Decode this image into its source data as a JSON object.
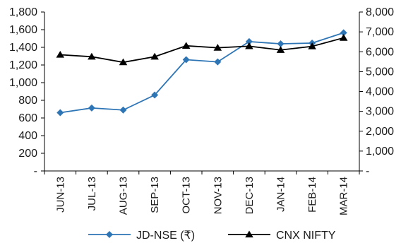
{
  "chart_data": {
    "type": "line",
    "categories": [
      "JUN-13",
      "JUL-13",
      "AUG-13",
      "SEP-13",
      "OCT-13",
      "NOV-13",
      "DEC-13",
      "JAN-14",
      "FEB-14",
      "MAR-14"
    ],
    "series": [
      {
        "name": "JD-NSE (₹)",
        "axis": "left",
        "color": "#2e75b6",
        "marker": "diamond",
        "values": [
          660,
          713,
          690,
          860,
          1260,
          1235,
          1465,
          1440,
          1448,
          1565
        ]
      },
      {
        "name": "CNX NIFTY",
        "axis": "right",
        "color": "#000000",
        "marker": "triangle",
        "values": [
          5850,
          5750,
          5470,
          5750,
          6300,
          6200,
          6280,
          6090,
          6270,
          6700
        ]
      }
    ],
    "y_left": {
      "ylim": [
        0,
        1800
      ],
      "ticks": [
        0,
        200,
        400,
        600,
        800,
        1000,
        1200,
        1400,
        1600,
        1800
      ],
      "tick_labels": [
        "-",
        "200",
        "400",
        "600",
        "800",
        "1,000",
        "1,200",
        "1,400",
        "1,600",
        "1,800"
      ]
    },
    "y_right": {
      "ylim": [
        0,
        8000
      ],
      "ticks": [
        0,
        1000,
        2000,
        3000,
        4000,
        5000,
        6000,
        7000,
        8000
      ],
      "tick_labels": [
        "-",
        "1,000",
        "2,000",
        "3,000",
        "4,000",
        "5,000",
        "6,000",
        "7,000",
        "8,000"
      ]
    },
    "grid": false,
    "legend": "bottom-center"
  }
}
